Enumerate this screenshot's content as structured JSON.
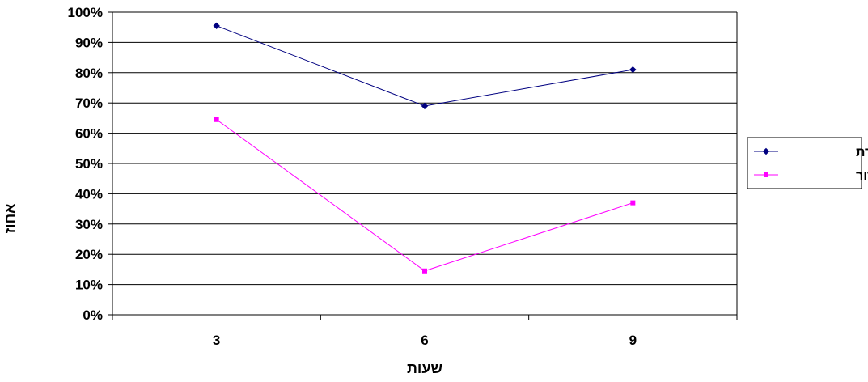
{
  "chart_data": {
    "type": "line",
    "title": "",
    "xlabel": "שעות",
    "ylabel": "אחוז",
    "categories": [
      "3",
      "6",
      "9"
    ],
    "ylim": [
      0,
      100
    ],
    "y_ticks": [
      "0%",
      "10%",
      "20%",
      "30%",
      "40%",
      "50%",
      "60%",
      "70%",
      "80%",
      "90%",
      "100%"
    ],
    "grid": true,
    "legend_position": "right",
    "series": [
      {
        "name": "ביקורת",
        "values": [
          95.5,
          69,
          81
        ],
        "color": "#000080",
        "marker": "diamond"
      },
      {
        "name": "קונפידור",
        "values": [
          64.5,
          14.5,
          37
        ],
        "color": "#FF00FF",
        "marker": "square"
      }
    ]
  }
}
